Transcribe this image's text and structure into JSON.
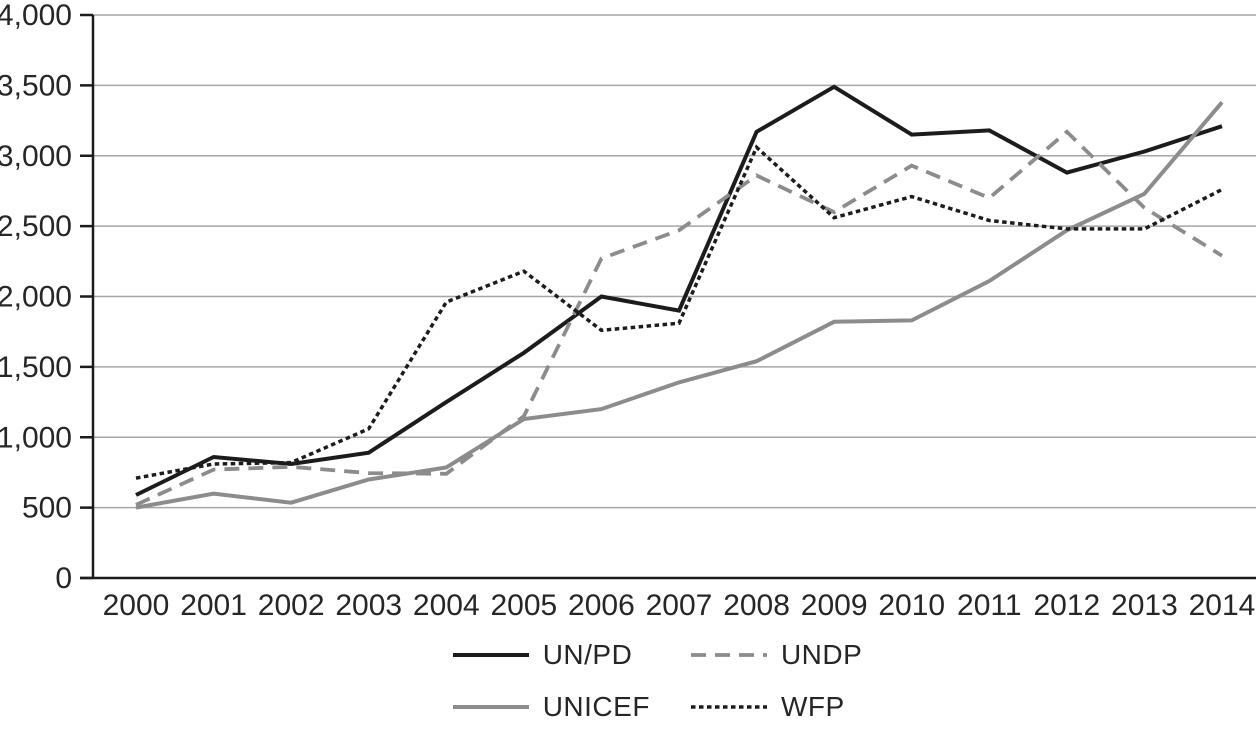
{
  "chart_data": {
    "type": "line",
    "x": [
      "2000",
      "2001",
      "2002",
      "2003",
      "2004",
      "2005",
      "2006",
      "2007",
      "2008",
      "2009",
      "2010",
      "2011",
      "2012",
      "2013",
      "2014"
    ],
    "series": [
      {
        "name": "UN/PD",
        "style": "solid",
        "color": "#1c1c1c",
        "width": 4,
        "values": [
          590,
          860,
          810,
          890,
          1250,
          1600,
          2000,
          1900,
          3170,
          3490,
          3150,
          3180,
          2880,
          3030,
          3210
        ]
      },
      {
        "name": "UNDP",
        "style": "dashed",
        "color": "#8c8c8c",
        "width": 3.8,
        "values": [
          520,
          770,
          790,
          745,
          740,
          1150,
          2270,
          2470,
          2860,
          2600,
          2930,
          2700,
          3170,
          2630,
          2290
        ]
      },
      {
        "name": "UNICEF",
        "style": "solid",
        "color": "#8c8c8c",
        "width": 4,
        "values": [
          500,
          600,
          535,
          700,
          785,
          1130,
          1200,
          1390,
          1540,
          1820,
          1830,
          2110,
          2470,
          2730,
          3380
        ]
      },
      {
        "name": "WFP",
        "style": "dotted",
        "color": "#1c1c1c",
        "width": 3.5,
        "values": [
          710,
          810,
          820,
          1060,
          1960,
          2180,
          1760,
          1810,
          3060,
          2560,
          2710,
          2540,
          2480,
          2480,
          2760
        ]
      }
    ],
    "title": "",
    "xlabel": "",
    "ylabel": "",
    "ylim": [
      0,
      4000
    ],
    "ytick_values": [
      0,
      500,
      1000,
      1500,
      2000,
      2500,
      3000,
      3500,
      4000
    ],
    "ytick_labels": [
      "0",
      "500",
      "1,000",
      "1,500",
      "2,000",
      "2,500",
      "3,000",
      "3,500",
      "4,000"
    ],
    "grid": "horizontal",
    "legend_position": "bottom",
    "legend_rows": [
      [
        "UN/PD",
        "UNDP"
      ],
      [
        "UNICEF",
        "WFP"
      ]
    ]
  },
  "colors": {
    "background": "#ffffff",
    "gridline": "#a6a6a6",
    "axis": "#1c1c1c",
    "text": "#262626"
  }
}
